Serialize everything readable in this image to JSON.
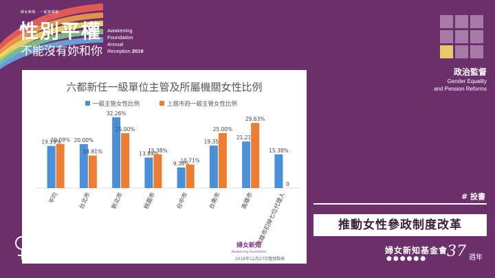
{
  "header": {
    "small_text": "婦女新知 · 一起來相挺",
    "title_main": "性別平權",
    "title_sub": "不能沒有妳和你",
    "awakening_lines": [
      "Awakening",
      "Foundation",
      "Annual"
    ],
    "awakening_last": "Reception",
    "awakening_year": "2019"
  },
  "topic": {
    "cn": "政治監督",
    "en_line1": "Gender Equality",
    "en_line2": "and Pension Reforms"
  },
  "hashtag": "# 投書",
  "article_title": "推動女性參政制度改革",
  "anniversary": {
    "name": "婦女新知基金會",
    "dots": "●●●●●●",
    "number": "37",
    "unit": "週年"
  },
  "chart_footer": {
    "logo_text": "婦女新知",
    "logo_sub": "Awakening Foundation",
    "note": "2018年12月27日整理製表"
  },
  "colors": {
    "background": "#6b2f6b",
    "series_blue": "#4a90d9",
    "series_orange": "#ed7d31",
    "accent_yellow": "#e9c86a"
  },
  "chart_data": {
    "type": "bar",
    "title": "六都新任一級單位主管及所屬機關女性比例",
    "categories": [
      "平均",
      "台北市",
      "新北市",
      "桃園市",
      "台中市",
      "台南市",
      "高雄市",
      "高雄市扣掉七位代理人"
    ],
    "series": [
      {
        "name": "一級主管女性比例",
        "values": [
          19.19,
          20.0,
          32.26,
          13.89,
          9.38,
          19.35,
          21.21,
          15.38
        ],
        "labels": [
          "19.19%",
          "20.00%",
          "32.26%",
          "13.89%",
          "9.38%",
          "19.35%",
          "21.21%",
          "15.38%"
        ]
      },
      {
        "name": "上屆市府一級主管女性比例",
        "values": [
          20.09,
          14.81,
          25.0,
          15.38,
          10.71,
          25.0,
          29.63,
          0
        ],
        "labels": [
          "20.09%",
          "14.81%",
          "25.00%",
          "15.38%",
          "10.71%",
          "25.00%",
          "29.63%",
          "0"
        ]
      }
    ],
    "ylim": [
      0,
      35
    ],
    "legend": "top",
    "grid": false
  }
}
